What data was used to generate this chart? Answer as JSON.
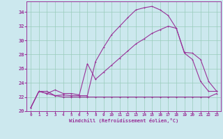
{
  "xlabel": "Windchill (Refroidissement éolien,°C)",
  "bg_color": "#cce8ee",
  "grid_color": "#99ccbb",
  "line_color": "#993399",
  "xlim": [
    -0.5,
    23.5
  ],
  "ylim": [
    20,
    35.5
  ],
  "yticks": [
    20,
    22,
    24,
    26,
    28,
    30,
    32,
    34
  ],
  "xticks": [
    0,
    1,
    2,
    3,
    4,
    5,
    6,
    7,
    8,
    9,
    10,
    11,
    12,
    13,
    14,
    15,
    16,
    17,
    18,
    19,
    20,
    21,
    22,
    23
  ],
  "s1_x": [
    0,
    1,
    2,
    3,
    4,
    5,
    6,
    7,
    8,
    9,
    10,
    11,
    12,
    13,
    14,
    15,
    16,
    17,
    18,
    19,
    20,
    21,
    22,
    23
  ],
  "s1_y": [
    20.5,
    22.8,
    22.8,
    22.2,
    22.3,
    22.2,
    22.2,
    22.2,
    27.0,
    29.0,
    30.8,
    32.0,
    33.2,
    34.3,
    34.6,
    34.8,
    34.3,
    33.5,
    31.7,
    28.2,
    27.3,
    24.2,
    22.8,
    22.8
  ],
  "s2_x": [
    0,
    1,
    2,
    3,
    4,
    5,
    6,
    7,
    8,
    9,
    10,
    11,
    12,
    13,
    14,
    15,
    16,
    17,
    18,
    19,
    20,
    21,
    22,
    23
  ],
  "s2_y": [
    20.5,
    22.8,
    22.5,
    22.2,
    22.0,
    22.0,
    22.0,
    22.0,
    22.0,
    22.0,
    22.0,
    22.0,
    22.0,
    22.0,
    22.0,
    22.0,
    22.0,
    22.0,
    22.0,
    22.0,
    22.0,
    22.0,
    22.0,
    22.5
  ],
  "s3_x": [
    0,
    1,
    2,
    3,
    4,
    5,
    6,
    7,
    8,
    9,
    10,
    11,
    12,
    13,
    14,
    15,
    16,
    17,
    18,
    19,
    20,
    21,
    22,
    23
  ],
  "s3_y": [
    20.5,
    22.8,
    22.5,
    23.0,
    22.5,
    22.5,
    22.3,
    26.7,
    24.5,
    25.5,
    26.5,
    27.5,
    28.5,
    29.5,
    30.2,
    31.0,
    31.5,
    32.0,
    31.7,
    28.3,
    28.2,
    27.3,
    24.2,
    22.8
  ]
}
